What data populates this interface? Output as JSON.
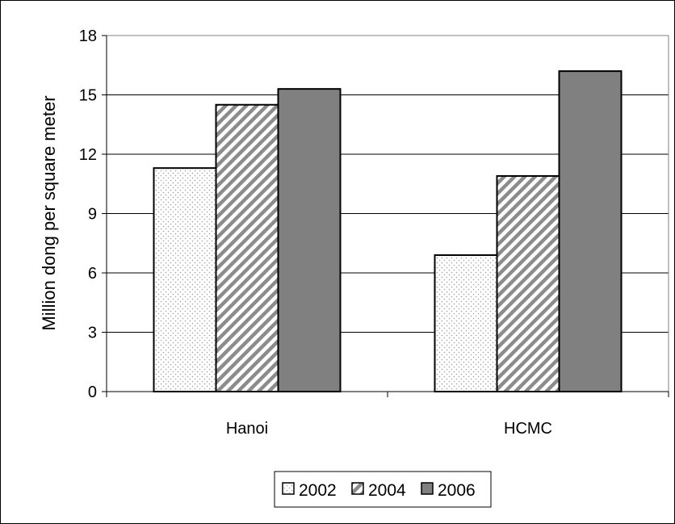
{
  "chart_data": {
    "type": "bar",
    "title": "",
    "xlabel": "",
    "ylabel": "Million dong per square meter",
    "categories": [
      "Hanoi",
      "HCMC"
    ],
    "series": [
      {
        "name": "2002",
        "values": [
          11.3,
          6.9
        ],
        "pattern": "dots"
      },
      {
        "name": "2004",
        "values": [
          14.5,
          10.9
        ],
        "pattern": "hatch"
      },
      {
        "name": "2006",
        "values": [
          15.3,
          16.2
        ],
        "pattern": "solid"
      }
    ],
    "ylim": [
      0,
      18
    ],
    "yticks": [
      0,
      3,
      6,
      9,
      12,
      15,
      18
    ],
    "grid": true,
    "legend_position": "bottom",
    "colors": {
      "solid": "#808080",
      "border": "#000000",
      "grid": "#000000",
      "plot_border": "#808080"
    }
  }
}
